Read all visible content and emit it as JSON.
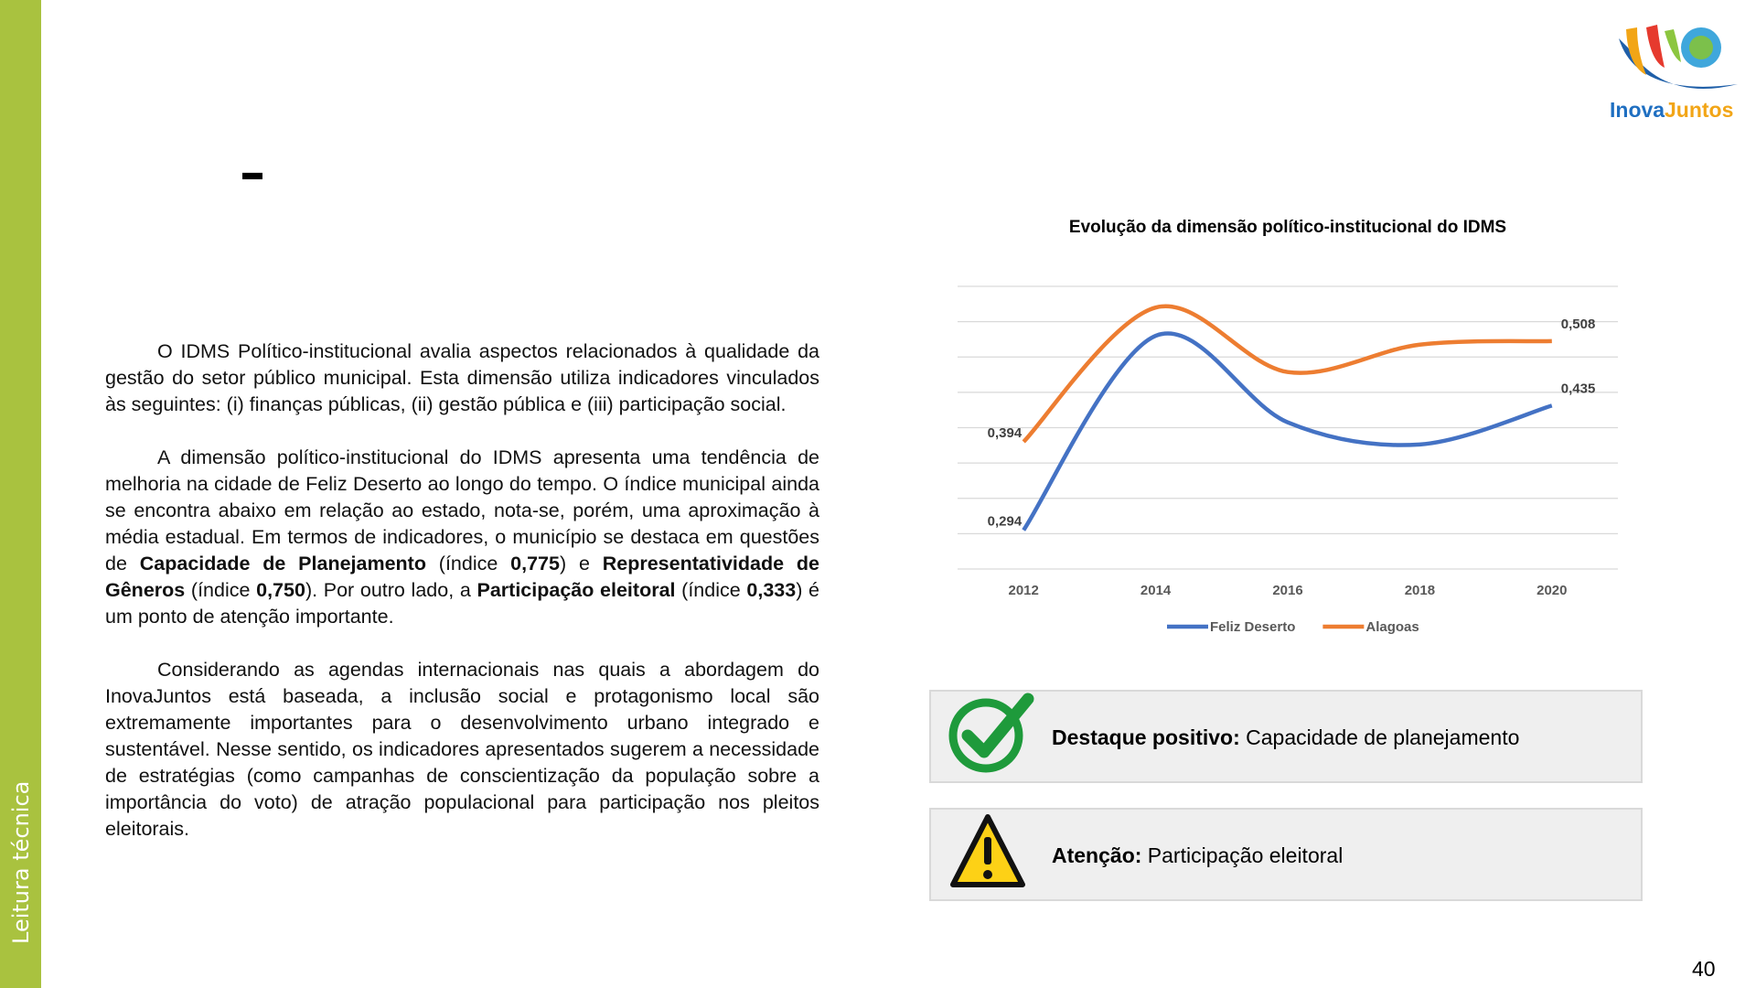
{
  "sidebar": {
    "label": "Leitura técnica"
  },
  "logo": {
    "text_1": "Inova",
    "text_2": "Juntos"
  },
  "header": {
    "title": "–"
  },
  "paragraphs": [
    [
      {
        "text": "O IDMS Político-institucional avalia aspectos relacionados à qualidade da gestão do setor público municipal. Esta dimensão utiliza indicadores vinculados às seguintes: (i) finanças públicas, (ii) gestão pública e (iii) participação social."
      }
    ],
    [
      {
        "text": "A dimensão político-institucional do IDMS apresenta uma tendência de melhoria na cidade de Feliz Deserto ao longo do tempo. O índice municipal ainda se encontra abaixo em relação ao estado, nota-se, porém, uma aproximação à média estadual. Em termos de indicadores, o município se destaca em questões de "
      },
      {
        "text": "Capacidade de Planejamento",
        "bold": true
      },
      {
        "text": " (índice "
      },
      {
        "text": "0,775",
        "bold": true
      },
      {
        "text": ") e "
      },
      {
        "text": "Representatividade de Gêneros",
        "bold": true
      },
      {
        "text": " (índice "
      },
      {
        "text": "0,750",
        "bold": true
      },
      {
        "text": "). Por outro lado, a "
      },
      {
        "text": "Participação eleitoral",
        "bold": true
      },
      {
        "text": " (índice "
      },
      {
        "text": "0,333",
        "bold": true
      },
      {
        "text": ") é um ponto de atenção importante."
      }
    ],
    [
      {
        "text": "Considerando as agendas internacionais nas quais a abordagem do InovaJuntos está baseada, a inclusão social e protagonismo local são extremamente importantes para o desenvolvimento urbano integrado e sustentável. Nesse sentido, os indicadores apresentados sugerem a necessidade de estratégias (como campanhas de conscientização da população sobre a importância do voto) de atração populacional para participação nos pleitos eleitorais."
      }
    ]
  ],
  "chart_data": {
    "type": "line",
    "title": "Evolução da dimensão político-institucional do IDMS",
    "categories": [
      "2012",
      "2014",
      "2016",
      "2018",
      "2020"
    ],
    "series": [
      {
        "name": "Feliz Deserto",
        "color": "#4472c4",
        "values": [
          0.294,
          0.514,
          0.416,
          0.391,
          0.435
        ],
        "value_labels": [
          "0,294",
          null,
          null,
          null,
          "0,435"
        ]
      },
      {
        "name": "Alagoas",
        "color": "#ed7d31",
        "values": [
          0.394,
          0.546,
          0.473,
          0.504,
          0.508
        ],
        "value_labels": [
          "0,394",
          null,
          null,
          null,
          "0,508"
        ]
      }
    ],
    "ylim": [
      0.25,
      0.57
    ],
    "yticks": [
      0.25,
      0.29,
      0.33,
      0.37,
      0.41,
      0.45,
      0.49,
      0.53,
      0.57
    ],
    "grid": true,
    "legend": "bottom"
  },
  "highlights": [
    {
      "label": "Destaque positivo:",
      "text": " Capacidade de planejamento"
    },
    {
      "label": "Atenção:",
      "text": " Participação eleitoral"
    }
  ],
  "page_number": "40"
}
